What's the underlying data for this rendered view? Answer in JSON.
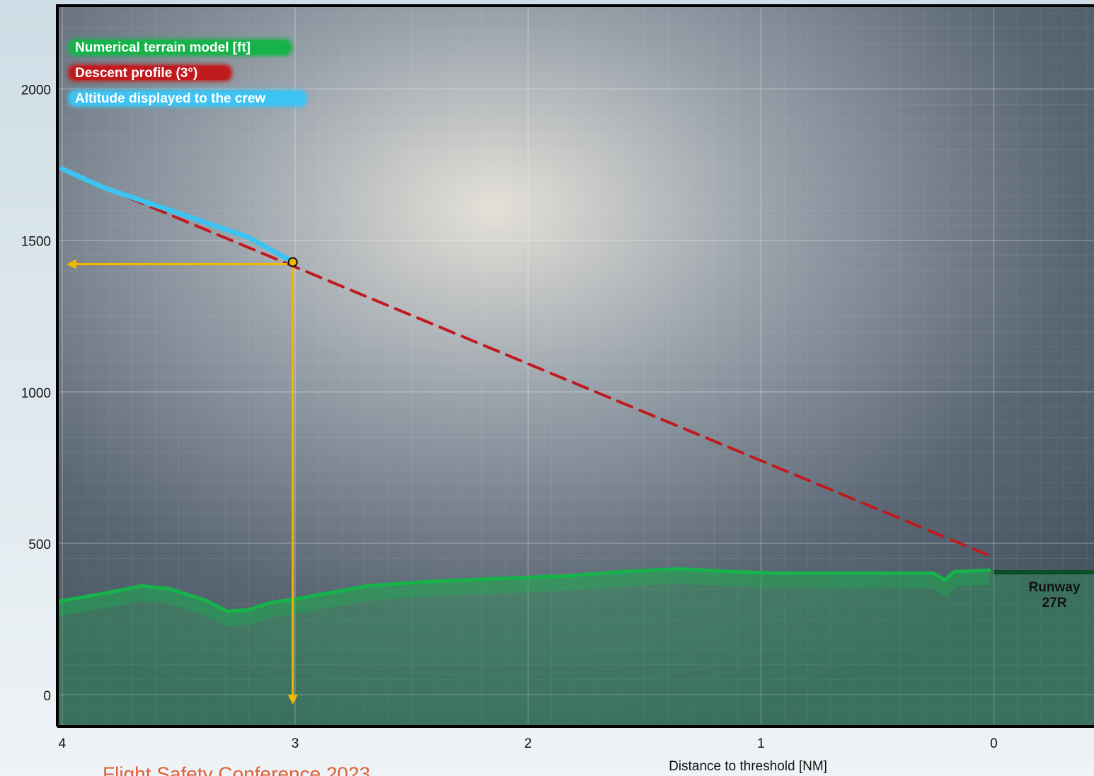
{
  "chart_data": {
    "type": "line",
    "x_label": "Distance to threshold [NM]",
    "xlim": [
      4.015,
      -0.43
    ],
    "xticks": [
      4,
      3,
      2,
      1,
      0
    ],
    "ylim": [
      -105,
      2270
    ],
    "yticks": [
      0,
      500,
      1000,
      1500,
      2000
    ],
    "grid": true,
    "legend": "upper left",
    "series": [
      {
        "name": "Numerical terrain model [ft]",
        "color": "#16b34a",
        "fill": true,
        "x": [
          4.015,
          3.81,
          3.66,
          3.54,
          3.39,
          3.29,
          3.2,
          3.11,
          2.99,
          2.69,
          2.44,
          2.14,
          1.84,
          1.6,
          1.35,
          1.11,
          0.93,
          0.62,
          0.26,
          0.21,
          0.17,
          0.02
        ],
        "values": [
          308,
          336,
          359,
          350,
          313,
          275,
          280,
          303,
          317,
          359,
          373,
          383,
          392,
          406,
          415,
          406,
          401,
          401,
          401,
          378,
          406,
          411
        ]
      },
      {
        "name": "Descent profile (3°)",
        "color": "#c01a1f",
        "dashed": true,
        "x": [
          4,
          0
        ],
        "values": [
          1732,
          453
        ]
      },
      {
        "name": "Altitude displayed to the crew",
        "color": "#3cc3f2",
        "x": [
          4,
          3.82,
          3.51,
          3.2,
          3.01
        ],
        "values": [
          1736,
          1673,
          1592,
          1510,
          1428
        ]
      }
    ],
    "runway": {
      "label": [
        "Runway",
        "27R"
      ],
      "x": [
        0,
        -0.43
      ],
      "y": 404,
      "color": "#0b4d26"
    },
    "footer": "Flight Safety Conference 2023"
  }
}
